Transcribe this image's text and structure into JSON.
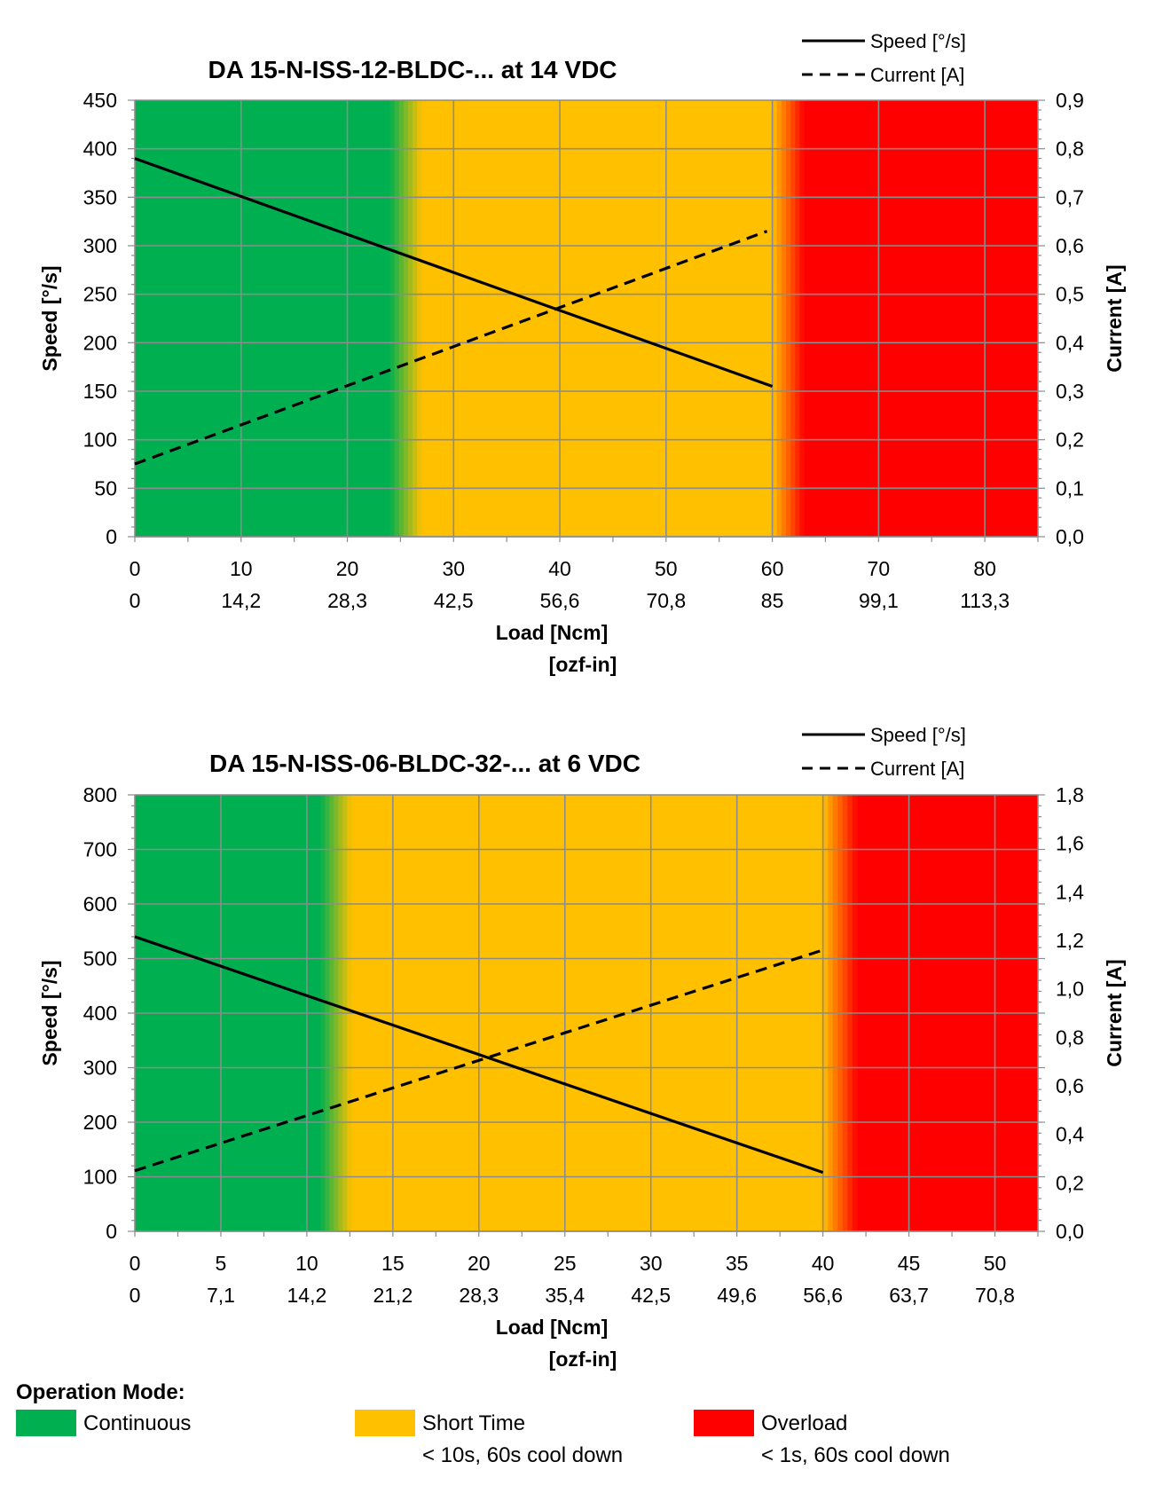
{
  "chart_data": [
    {
      "type": "line",
      "title": "DA 15-N-ISS-12-BLDC-... at 14 VDC",
      "xlabel": "Load [Ncm]",
      "xlabel2": "[ozf-in]",
      "ylabel": "Speed [°/s]",
      "y2label": "Current [A]",
      "xlim": [
        0,
        85
      ],
      "ylim": [
        0,
        450
      ],
      "y2lim": [
        0,
        0.9
      ],
      "x_ticks": [
        "0",
        "10",
        "20",
        "30",
        "40",
        "50",
        "60",
        "70",
        "80"
      ],
      "x_ticks_values": [
        0,
        10,
        20,
        30,
        40,
        50,
        60,
        70,
        80
      ],
      "x2_ticks": [
        "0",
        "14,2",
        "28,3",
        "42,5",
        "56,6",
        "70,8",
        "85",
        "99,1",
        "113,3"
      ],
      "y_ticks": [
        "0",
        "50",
        "100",
        "150",
        "200",
        "250",
        "300",
        "350",
        "400",
        "450"
      ],
      "y2_ticks": [
        "0,0",
        "0,1",
        "0,2",
        "0,3",
        "0,4",
        "0,5",
        "0,6",
        "0,7",
        "0,8",
        "0,9"
      ],
      "grid": true,
      "legend_position": "top-right",
      "series": [
        {
          "name": "Speed [°/s]",
          "style": "solid",
          "axis": "left",
          "x": [
            0,
            60
          ],
          "values": [
            390,
            155
          ]
        },
        {
          "name": "Current [A]",
          "style": "dashed",
          "axis": "right",
          "x": [
            0,
            59.5
          ],
          "values": [
            0.15,
            0.63
          ]
        }
      ],
      "zones": [
        {
          "mode": "continuous",
          "from": 0,
          "to": 24
        },
        {
          "mode": "transition",
          "from": 24,
          "to": 27
        },
        {
          "mode": "short_time",
          "from": 27,
          "to": 60
        },
        {
          "mode": "transition",
          "from": 60,
          "to": 63
        },
        {
          "mode": "overload",
          "from": 63,
          "to": 85
        }
      ]
    },
    {
      "type": "line",
      "title": "DA 15-N-ISS-06-BLDC-32-... at 6 VDC",
      "xlabel": "Load [Ncm]",
      "xlabel2": "[ozf-in]",
      "ylabel": "Speed [°/s]",
      "y2label": "Current [A]",
      "xlim": [
        0,
        52.5
      ],
      "ylim": [
        0,
        800
      ],
      "y2lim": [
        0,
        1.8
      ],
      "x_ticks": [
        "0",
        "5",
        "10",
        "15",
        "20",
        "25",
        "30",
        "35",
        "40",
        "45",
        "50"
      ],
      "x_ticks_values": [
        0,
        5,
        10,
        15,
        20,
        25,
        30,
        35,
        40,
        45,
        50
      ],
      "x2_ticks": [
        "0",
        "7,1",
        "14,2",
        "21,2",
        "28,3",
        "35,4",
        "42,5",
        "49,6",
        "56,6",
        "63,7",
        "70,8"
      ],
      "y_ticks": [
        "0",
        "100",
        "200",
        "300",
        "400",
        "500",
        "600",
        "700",
        "800"
      ],
      "y2_ticks": [
        "0,0",
        "0,2",
        "0,4",
        "0,6",
        "0,8",
        "1,0",
        "1,2",
        "1,4",
        "1,6",
        "1,8"
      ],
      "grid": true,
      "legend_position": "top-right",
      "series": [
        {
          "name": "Speed [°/s]",
          "style": "solid",
          "axis": "left",
          "x": [
            0,
            40
          ],
          "values": [
            540,
            108
          ]
        },
        {
          "name": "Current [A]",
          "style": "dashed",
          "axis": "right",
          "x": [
            0,
            40
          ],
          "values": [
            0.25,
            1.16
          ]
        }
      ],
      "zones": [
        {
          "mode": "continuous",
          "from": 0,
          "to": 10.8
        },
        {
          "mode": "transition",
          "from": 10.8,
          "to": 12.6
        },
        {
          "mode": "short_time",
          "from": 12.6,
          "to": 40
        },
        {
          "mode": "transition",
          "from": 40,
          "to": 42
        },
        {
          "mode": "overload",
          "from": 42,
          "to": 52.5
        }
      ]
    }
  ],
  "operation_legend": {
    "heading": "Operation Mode:",
    "items": [
      {
        "label": "Continuous",
        "note": "",
        "color": "#00b050"
      },
      {
        "label": "Short Time",
        "note": "< 10s, 60s cool down",
        "color": "#ffc000"
      },
      {
        "label": "Overload",
        "note": "< 1s, 60s cool down",
        "color": "#ff0000"
      }
    ]
  },
  "colors": {
    "continuous": "#00b050",
    "short_time": "#ffc000",
    "overload": "#ff0000",
    "grid": "#8c8c8c",
    "line": "#000000"
  }
}
